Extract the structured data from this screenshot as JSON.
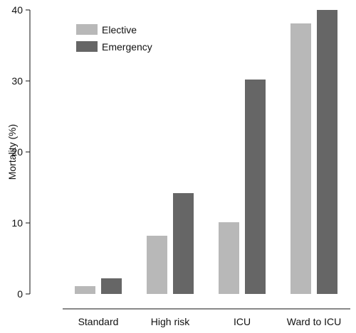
{
  "chart_data": {
    "type": "bar",
    "title": "",
    "xlabel": "",
    "ylabel": "Mortality (%)",
    "ylim": [
      0,
      40
    ],
    "yticks": [
      0,
      10,
      20,
      30,
      40
    ],
    "categories": [
      "Standard",
      "High risk",
      "ICU",
      "Ward to ICU"
    ],
    "series": [
      {
        "name": "Elective",
        "color": "#b8b8b8",
        "values": [
          1.1,
          8.2,
          10.1,
          38.1
        ]
      },
      {
        "name": "Emergency",
        "color": "#666666",
        "values": [
          2.2,
          14.2,
          30.2,
          40.0
        ]
      }
    ],
    "legend": "top-left",
    "grid": false
  }
}
